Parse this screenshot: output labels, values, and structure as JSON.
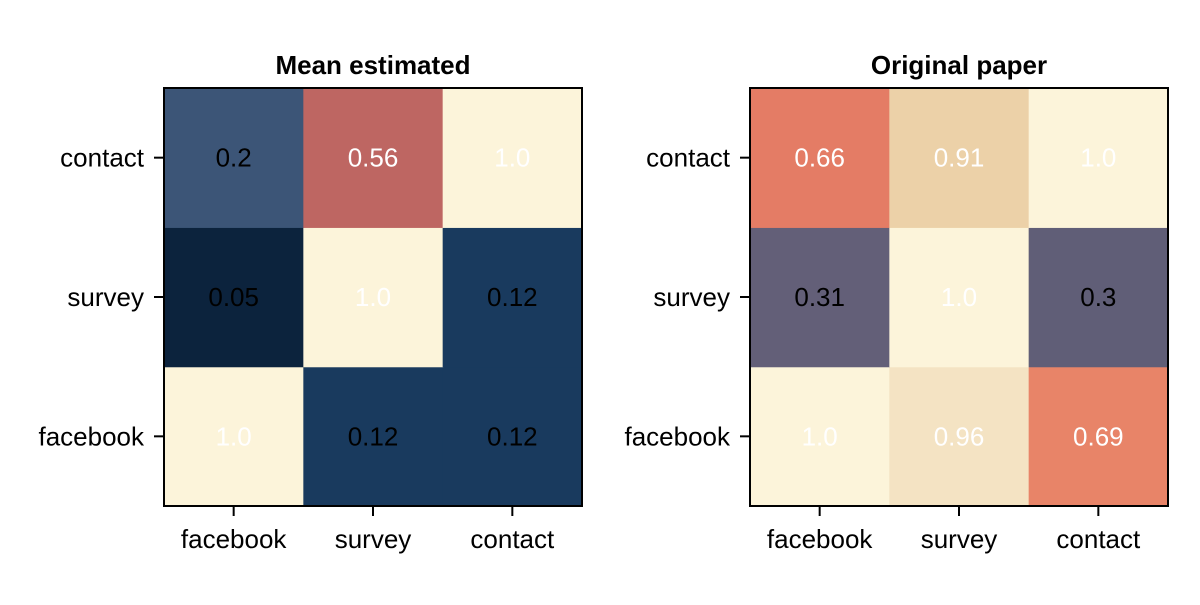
{
  "chart_data": [
    {
      "type": "heatmap",
      "title": "Mean estimated",
      "x_categories": [
        "facebook",
        "survey",
        "contact"
      ],
      "y_categories": [
        "facebook",
        "survey",
        "contact"
      ],
      "values": [
        [
          1.0,
          0.12,
          0.12
        ],
        [
          0.05,
          1.0,
          0.12
        ],
        [
          0.2,
          0.56,
          1.0
        ]
      ],
      "labels": [
        [
          "1.0",
          "0.12",
          "0.12"
        ],
        [
          "0.05",
          "1.0",
          "0.12"
        ],
        [
          "0.2",
          "0.56",
          "1.0"
        ]
      ],
      "colors": [
        [
          "#fcf4da",
          "#193a5e",
          "#193a5e"
        ],
        [
          "#0c233d",
          "#fcf4da",
          "#193a5e"
        ],
        [
          "#3c5577",
          "#be6662",
          "#fcf4da"
        ]
      ],
      "label_colors": [
        [
          "#ffffff",
          "#000000",
          "#000000"
        ],
        [
          "#000000",
          "#ffffff",
          "#000000"
        ],
        [
          "#000000",
          "#ffffff",
          "#ffffff"
        ]
      ],
      "xlabel": "",
      "ylabel": ""
    },
    {
      "type": "heatmap",
      "title": "Original paper",
      "x_categories": [
        "facebook",
        "survey",
        "contact"
      ],
      "y_categories": [
        "facebook",
        "survey",
        "contact"
      ],
      "values": [
        [
          1.0,
          0.96,
          0.69
        ],
        [
          0.31,
          1.0,
          0.3
        ],
        [
          0.66,
          0.91,
          1.0
        ]
      ],
      "labels": [
        [
          "1.0",
          "0.96",
          "0.69"
        ],
        [
          "0.31",
          "1.0",
          "0.3"
        ],
        [
          "0.66",
          "0.91",
          "1.0"
        ]
      ],
      "colors": [
        [
          "#fcf4da",
          "#f4e3c3",
          "#e88468"
        ],
        [
          "#635f78",
          "#fcf4da",
          "#605e77"
        ],
        [
          "#e47c65",
          "#ecd1a8",
          "#fcf4da"
        ]
      ],
      "label_colors": [
        [
          "#ffffff",
          "#ffffff",
          "#ffffff"
        ],
        [
          "#000000",
          "#ffffff",
          "#000000"
        ],
        [
          "#ffffff",
          "#ffffff",
          "#ffffff"
        ]
      ],
      "xlabel": "",
      "ylabel": ""
    }
  ]
}
